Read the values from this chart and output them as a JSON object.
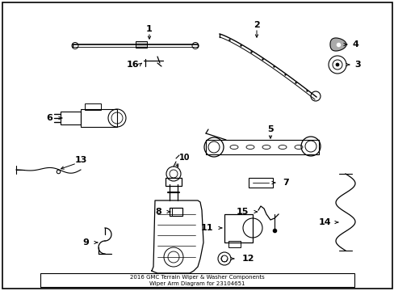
{
  "title": "2016 GMC Terrain Wiper & Washer Components\nWiper Arm Diagram for 23104651",
  "background_color": "#ffffff",
  "border_color": "#000000",
  "text_color": "#000000",
  "figsize": [
    4.89,
    3.6
  ],
  "dpi": 100,
  "label_fs": 8,
  "lw": 0.9
}
